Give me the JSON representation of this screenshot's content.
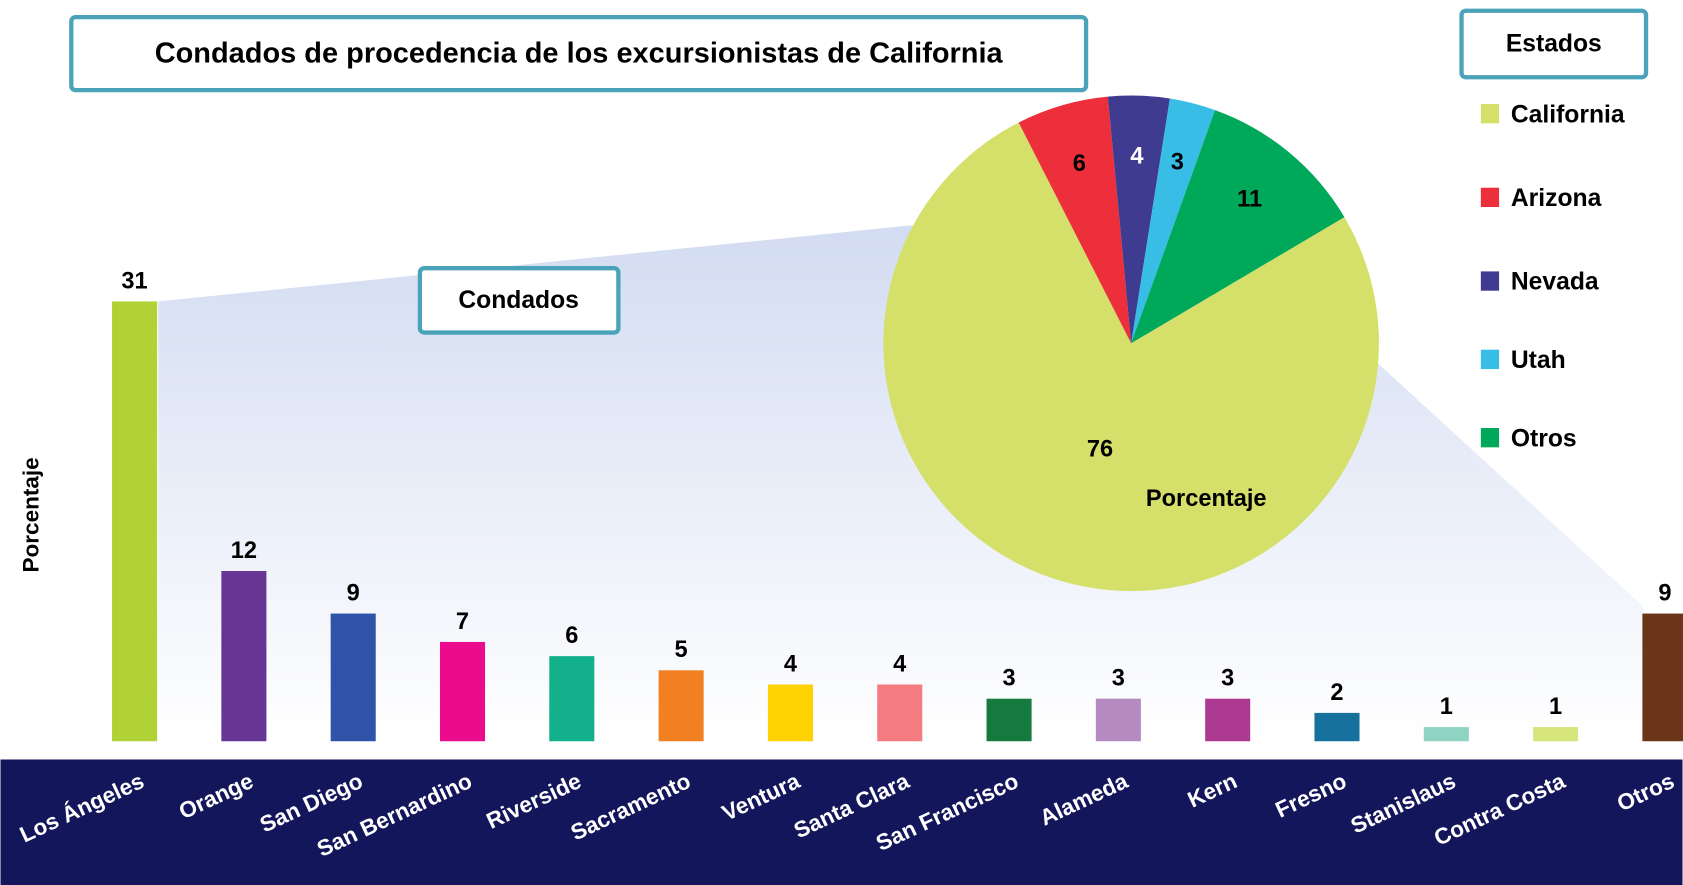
{
  "chart_data": [
    {
      "type": "bar",
      "title": "Condados de procedencia de los excursionistas de California",
      "annotation": "Condados",
      "y_label": "Porcentaje",
      "categories": [
        "Los Ángeles",
        "Orange",
        "San Diego",
        "San Bernardino",
        "Riverside",
        "Sacramento",
        "Ventura",
        "Santa Clara",
        "San Francisco",
        "Alameda",
        "Kern",
        "Fresno",
        "Stanislaus",
        "Contra Costa",
        "Otros"
      ],
      "values": [
        31,
        12,
        9,
        7,
        6,
        5,
        4,
        4,
        3,
        3,
        3,
        2,
        1,
        1,
        9
      ],
      "colors": [
        "#b0d235",
        "#673695",
        "#2e53a8",
        "#ec0b8c",
        "#13b18b",
        "#f28023",
        "#fdd200",
        "#f47b80",
        "#157a3d",
        "#b58ac0",
        "#ad3a91",
        "#16719c",
        "#8fd3c2",
        "#d7e57d",
        "#6a3518"
      ],
      "ylim": [
        0,
        31
      ]
    },
    {
      "type": "pie",
      "legend_title": "Estados",
      "label": "Porcentaje",
      "categories": [
        "California",
        "Arizona",
        "Nevada",
        "Utah",
        "Otros"
      ],
      "values": [
        76,
        6,
        4,
        3,
        11
      ],
      "colors": [
        "#d5e06a",
        "#ec2f3a",
        "#3f3b91",
        "#38bde6",
        "#00a859"
      ],
      "value_label_colors": [
        "#000000",
        "#000000",
        "#ffffff",
        "#000000",
        "#000000"
      ],
      "legend": "right"
    }
  ]
}
